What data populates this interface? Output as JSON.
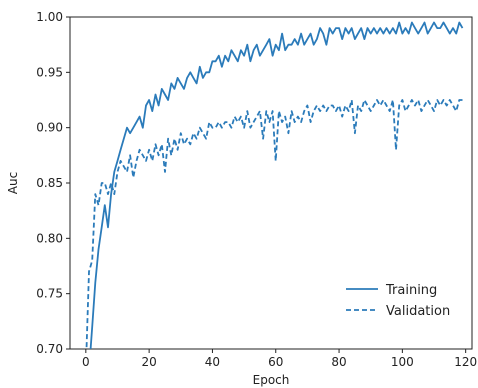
{
  "chart_data": {
    "type": "line",
    "xlabel": "Epoch",
    "ylabel": "Auc",
    "xlim": [
      -5,
      122
    ],
    "ylim": [
      0.7,
      1.0
    ],
    "xticks": [
      0,
      20,
      40,
      60,
      80,
      100,
      120
    ],
    "yticks": [
      0.7,
      0.75,
      0.8,
      0.85,
      0.9,
      0.95,
      1.0
    ],
    "ytick_labels": [
      "0.70",
      "0.75",
      "0.80",
      "0.85",
      "0.90",
      "0.95",
      "1.00"
    ],
    "grid": false,
    "legend_position": "lower-right",
    "series": [
      {
        "name": "Training",
        "style": "solid",
        "color": "#2b7bba",
        "x": [
          0,
          1,
          2,
          3,
          4,
          5,
          6,
          7,
          8,
          9,
          10,
          11,
          12,
          13,
          14,
          15,
          16,
          17,
          18,
          19,
          20,
          21,
          22,
          23,
          24,
          25,
          26,
          27,
          28,
          29,
          30,
          31,
          32,
          33,
          34,
          35,
          36,
          37,
          38,
          39,
          40,
          41,
          42,
          43,
          44,
          45,
          46,
          47,
          48,
          49,
          50,
          51,
          52,
          53,
          54,
          55,
          56,
          57,
          58,
          59,
          60,
          61,
          62,
          63,
          64,
          65,
          66,
          67,
          68,
          69,
          70,
          71,
          72,
          73,
          74,
          75,
          76,
          77,
          78,
          79,
          80,
          81,
          82,
          83,
          84,
          85,
          86,
          87,
          88,
          89,
          90,
          91,
          92,
          93,
          94,
          95,
          96,
          97,
          98,
          99,
          100,
          101,
          102,
          103,
          104,
          105,
          106,
          107,
          108,
          109,
          110,
          111,
          112,
          113,
          114,
          115,
          116,
          117,
          118,
          119
        ],
        "y": [
          0.66,
          0.68,
          0.72,
          0.76,
          0.79,
          0.81,
          0.83,
          0.81,
          0.84,
          0.86,
          0.87,
          0.88,
          0.89,
          0.9,
          0.895,
          0.9,
          0.905,
          0.91,
          0.9,
          0.92,
          0.925,
          0.915,
          0.93,
          0.92,
          0.935,
          0.93,
          0.925,
          0.94,
          0.935,
          0.945,
          0.94,
          0.935,
          0.945,
          0.95,
          0.945,
          0.94,
          0.955,
          0.945,
          0.95,
          0.95,
          0.96,
          0.96,
          0.965,
          0.955,
          0.965,
          0.96,
          0.97,
          0.965,
          0.96,
          0.97,
          0.965,
          0.975,
          0.96,
          0.97,
          0.975,
          0.965,
          0.97,
          0.975,
          0.98,
          0.965,
          0.975,
          0.97,
          0.985,
          0.97,
          0.975,
          0.975,
          0.98,
          0.975,
          0.985,
          0.975,
          0.98,
          0.985,
          0.975,
          0.98,
          0.99,
          0.985,
          0.975,
          0.99,
          0.985,
          0.99,
          0.99,
          0.98,
          0.99,
          0.985,
          0.99,
          0.98,
          0.985,
          0.99,
          0.98,
          0.99,
          0.985,
          0.99,
          0.985,
          0.99,
          0.985,
          0.99,
          0.985,
          0.99,
          0.985,
          0.995,
          0.985,
          0.99,
          0.985,
          0.995,
          0.99,
          0.985,
          0.99,
          0.995,
          0.985,
          0.99,
          0.995,
          0.99,
          0.99,
          0.995,
          0.99,
          0.985,
          0.99,
          0.985,
          0.995,
          0.99
        ]
      },
      {
        "name": "Validation",
        "style": "dashed",
        "color": "#2b7bba",
        "x": [
          0,
          1,
          2,
          3,
          4,
          5,
          6,
          7,
          8,
          9,
          10,
          11,
          12,
          13,
          14,
          15,
          16,
          17,
          18,
          19,
          20,
          21,
          22,
          23,
          24,
          25,
          26,
          27,
          28,
          29,
          30,
          31,
          32,
          33,
          34,
          35,
          36,
          37,
          38,
          39,
          40,
          41,
          42,
          43,
          44,
          45,
          46,
          47,
          48,
          49,
          50,
          51,
          52,
          53,
          54,
          55,
          56,
          57,
          58,
          59,
          60,
          61,
          62,
          63,
          64,
          65,
          66,
          67,
          68,
          69,
          70,
          71,
          72,
          73,
          74,
          75,
          76,
          77,
          78,
          79,
          80,
          81,
          82,
          83,
          84,
          85,
          86,
          87,
          88,
          89,
          90,
          91,
          92,
          93,
          94,
          95,
          96,
          97,
          98,
          99,
          100,
          101,
          102,
          103,
          104,
          105,
          106,
          107,
          108,
          109,
          110,
          111,
          112,
          113,
          114,
          115,
          116,
          117,
          118,
          119
        ],
        "y": [
          0.68,
          0.77,
          0.78,
          0.84,
          0.83,
          0.85,
          0.85,
          0.84,
          0.85,
          0.84,
          0.86,
          0.87,
          0.865,
          0.86,
          0.875,
          0.855,
          0.87,
          0.88,
          0.875,
          0.87,
          0.88,
          0.87,
          0.885,
          0.875,
          0.885,
          0.86,
          0.89,
          0.875,
          0.89,
          0.88,
          0.895,
          0.885,
          0.89,
          0.885,
          0.895,
          0.89,
          0.9,
          0.895,
          0.89,
          0.905,
          0.9,
          0.9,
          0.905,
          0.9,
          0.905,
          0.905,
          0.9,
          0.91,
          0.905,
          0.91,
          0.9,
          0.915,
          0.9,
          0.905,
          0.91,
          0.915,
          0.89,
          0.915,
          0.905,
          0.915,
          0.87,
          0.915,
          0.905,
          0.91,
          0.895,
          0.915,
          0.905,
          0.91,
          0.905,
          0.915,
          0.92,
          0.905,
          0.915,
          0.92,
          0.915,
          0.92,
          0.915,
          0.92,
          0.92,
          0.915,
          0.92,
          0.91,
          0.92,
          0.915,
          0.925,
          0.895,
          0.92,
          0.915,
          0.925,
          0.92,
          0.915,
          0.92,
          0.925,
          0.92,
          0.925,
          0.92,
          0.915,
          0.925,
          0.88,
          0.92,
          0.925,
          0.915,
          0.92,
          0.925,
          0.92,
          0.925,
          0.915,
          0.92,
          0.925,
          0.92,
          0.915,
          0.925,
          0.92,
          0.925,
          0.92,
          0.925,
          0.92,
          0.915,
          0.925,
          0.925
        ]
      }
    ]
  }
}
